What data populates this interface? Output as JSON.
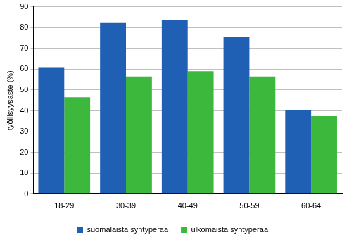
{
  "chart_data": {
    "type": "bar",
    "y_label": "työllisyysaste (%)",
    "categories": [
      "18-29",
      "30-39",
      "40-49",
      "50-59",
      "60-64"
    ],
    "series": [
      {
        "name": "suomalaista syntyperää",
        "color": "#1f5fb4",
        "values": [
          61,
          82.5,
          83.5,
          75.5,
          40.5
        ]
      },
      {
        "name": "ulkomaista syntyperää",
        "color": "#3cb93c",
        "values": [
          46.5,
          56.5,
          59,
          56.5,
          37.5
        ]
      }
    ],
    "ylim": [
      0,
      90
    ],
    "yticks": [
      0,
      10,
      20,
      30,
      40,
      50,
      60,
      70,
      80,
      90
    ],
    "grid": true,
    "legend": "bottom"
  }
}
